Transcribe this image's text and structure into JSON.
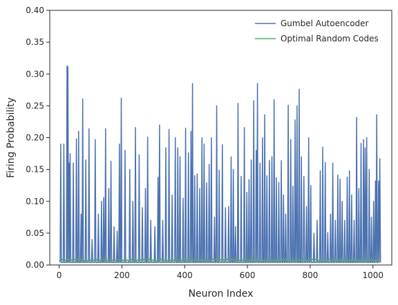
{
  "chart_data": {
    "type": "line",
    "title": "",
    "xlabel": "Neuron Index",
    "ylabel": "Firing Probability",
    "xlim": [
      -30,
      1060
    ],
    "ylim": [
      0,
      0.4
    ],
    "x_ticks": [
      0,
      200,
      400,
      600,
      800,
      1000
    ],
    "x_tick_labels": [
      "0",
      "200",
      "400",
      "600",
      "800",
      "1000"
    ],
    "y_ticks": [
      0.0,
      0.05,
      0.1,
      0.15,
      0.2,
      0.25,
      0.3,
      0.35,
      0.4
    ],
    "y_tick_labels": [
      "0.00",
      "0.05",
      "0.10",
      "0.15",
      "0.20",
      "0.25",
      "0.30",
      "0.35",
      "0.40"
    ],
    "grid": false,
    "legend": "top-right",
    "series": [
      {
        "name": "Gumbel Autoencoder",
        "color": "#4c72b0",
        "peaks": [
          [
            5,
            0.19
          ],
          [
            15,
            0.19
          ],
          [
            25,
            0.313
          ],
          [
            28,
            0.311
          ],
          [
            32,
            0.16
          ],
          [
            35,
            0.175
          ],
          [
            45,
            0.16
          ],
          [
            55,
            0.198
          ],
          [
            62,
            0.21
          ],
          [
            70,
            0.08
          ],
          [
            75,
            0.261
          ],
          [
            85,
            0.165
          ],
          [
            95,
            0.214
          ],
          [
            105,
            0.04
          ],
          [
            115,
            0.197
          ],
          [
            125,
            0.08
          ],
          [
            135,
            0.1
          ],
          [
            142,
            0.106
          ],
          [
            148,
            0.214
          ],
          [
            158,
            0.12
          ],
          [
            165,
            0.163
          ],
          [
            175,
            0.06
          ],
          [
            185,
            0.053
          ],
          [
            192,
            0.19
          ],
          [
            198,
            0.262
          ],
          [
            210,
            0.18
          ],
          [
            225,
            0.15
          ],
          [
            235,
            0.1
          ],
          [
            243,
            0.216
          ],
          [
            255,
            0.173
          ],
          [
            265,
            0.09
          ],
          [
            275,
            0.12
          ],
          [
            282,
            0.201
          ],
          [
            292,
            0.07
          ],
          [
            305,
            0.06
          ],
          [
            315,
            0.138
          ],
          [
            320,
            0.22
          ],
          [
            330,
            0.07
          ],
          [
            340,
            0.184
          ],
          [
            350,
            0.213
          ],
          [
            360,
            0.11
          ],
          [
            370,
            0.2
          ],
          [
            378,
            0.184
          ],
          [
            385,
            0.17
          ],
          [
            395,
            0.105
          ],
          [
            403,
            0.215
          ],
          [
            412,
            0.176
          ],
          [
            420,
            0.21
          ],
          [
            425,
            0.285
          ],
          [
            432,
            0.14
          ],
          [
            440,
            0.143
          ],
          [
            448,
            0.12
          ],
          [
            455,
            0.2
          ],
          [
            462,
            0.19
          ],
          [
            470,
            0.129
          ],
          [
            478,
            0.158
          ],
          [
            485,
            0.2
          ],
          [
            495,
            0.075
          ],
          [
            502,
            0.25
          ],
          [
            510,
            0.149
          ],
          [
            520,
            0.189
          ],
          [
            530,
            0.09
          ],
          [
            540,
            0.092
          ],
          [
            548,
            0.17
          ],
          [
            555,
            0.15
          ],
          [
            562,
            0.06
          ],
          [
            570,
            0.254
          ],
          [
            580,
            0.139
          ],
          [
            590,
            0.216
          ],
          [
            598,
            0.114
          ],
          [
            605,
            0.134
          ],
          [
            612,
            0.165
          ],
          [
            620,
            0.258
          ],
          [
            628,
            0.18
          ],
          [
            632,
            0.285
          ],
          [
            640,
            0.16
          ],
          [
            648,
            0.2
          ],
          [
            655,
            0.236
          ],
          [
            662,
            0.14
          ],
          [
            670,
            0.164
          ],
          [
            678,
            0.17
          ],
          [
            685,
            0.26
          ],
          [
            692,
            0.137
          ],
          [
            700,
            0.13
          ],
          [
            708,
            0.164
          ],
          [
            715,
            0.11
          ],
          [
            722,
            0.08
          ],
          [
            730,
            0.251
          ],
          [
            738,
            0.197
          ],
          [
            745,
            0.124
          ],
          [
            752,
            0.228
          ],
          [
            758,
            0.25
          ],
          [
            765,
            0.276
          ],
          [
            772,
            0.17
          ],
          [
            780,
            0.139
          ],
          [
            788,
            0.092
          ],
          [
            795,
            0.2
          ],
          [
            802,
            0.125
          ],
          [
            812,
            0.05
          ],
          [
            822,
            0.07
          ],
          [
            832,
            0.148
          ],
          [
            840,
            0.185
          ],
          [
            848,
            0.161
          ],
          [
            856,
            0.051
          ],
          [
            865,
            0.08
          ],
          [
            872,
            0.16
          ],
          [
            880,
            0.07
          ],
          [
            888,
            0.141
          ],
          [
            895,
            0.135
          ],
          [
            902,
            0.1
          ],
          [
            910,
            0.07
          ],
          [
            918,
            0.138
          ],
          [
            925,
            0.148
          ],
          [
            932,
            0.11
          ],
          [
            940,
            0.07
          ],
          [
            948,
            0.232
          ],
          [
            955,
            0.12
          ],
          [
            962,
            0.191
          ],
          [
            970,
            0.197
          ],
          [
            975,
            0.184
          ],
          [
            980,
            0.2
          ],
          [
            988,
            0.15
          ],
          [
            995,
            0.075
          ],
          [
            1002,
            0.1
          ],
          [
            1008,
            0.132
          ],
          [
            1012,
            0.236
          ],
          [
            1018,
            0.132
          ],
          [
            1022,
            0.167
          ]
        ]
      },
      {
        "name": "Optimal Random Codes",
        "color": "#55a868",
        "value": 0.0078
      }
    ]
  }
}
